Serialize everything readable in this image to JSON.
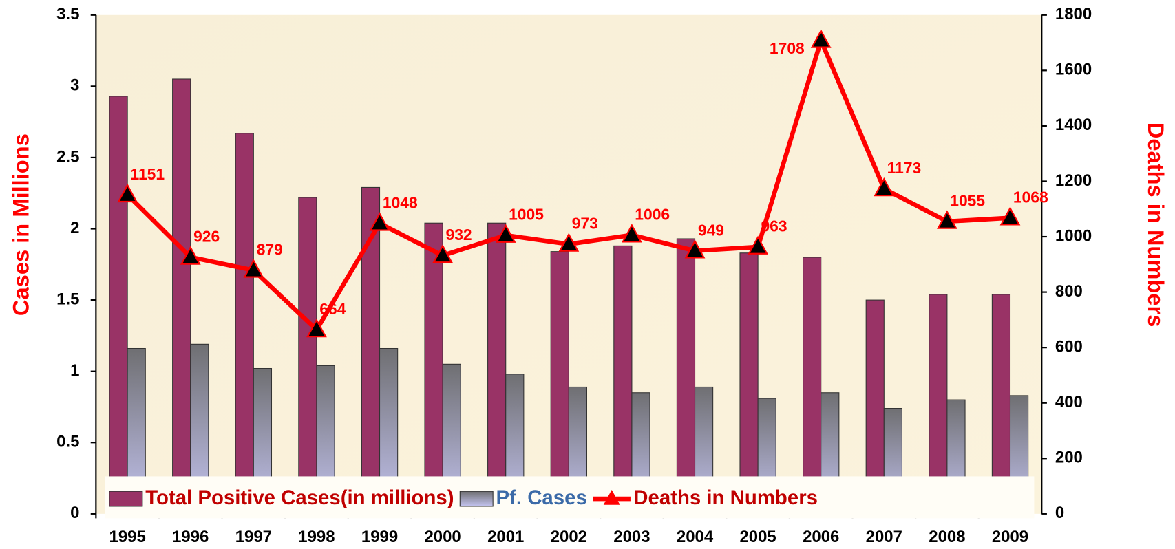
{
  "chart_data": {
    "type": "bar-line",
    "y_label": "Cases in Millions",
    "y2_label": "Deaths in Numbers",
    "categories": [
      "1995",
      "1996",
      "1997",
      "1998",
      "1999",
      "2000",
      "2001",
      "2002",
      "2003",
      "2004",
      "2005",
      "2006",
      "2007",
      "2008",
      "2009"
    ],
    "series": [
      {
        "name": "Total Positive Cases(in millions)",
        "color": "#993366",
        "type": "bar",
        "values": [
          2.93,
          3.05,
          2.67,
          2.22,
          2.29,
          2.04,
          2.04,
          1.84,
          1.88,
          1.93,
          1.83,
          1.8,
          1.5,
          1.54,
          1.54
        ]
      },
      {
        "name": "Pf. Cases",
        "color": "#8a8a9a",
        "type": "bar",
        "values": [
          1.16,
          1.19,
          1.02,
          1.04,
          1.16,
          1.05,
          0.98,
          0.89,
          0.85,
          0.89,
          0.81,
          0.85,
          0.74,
          0.8,
          0.83
        ]
      },
      {
        "name": "Deaths in Numbers",
        "color": "#ff0000",
        "type": "line",
        "axis": "y2",
        "values": [
          1151,
          926,
          879,
          664,
          1048,
          932,
          1005,
          973,
          1006,
          949,
          963,
          1708,
          1173,
          1055,
          1068
        ]
      }
    ],
    "ylim": [
      0,
      3.5
    ],
    "yticks": [
      0,
      0.5,
      1,
      1.5,
      2,
      2.5,
      3,
      3.5
    ],
    "y2lim": [
      0,
      1800
    ],
    "y2ticks": [
      0,
      200,
      400,
      600,
      800,
      1000,
      1200,
      1400,
      1600,
      1800
    ],
    "legend": "bottom"
  }
}
